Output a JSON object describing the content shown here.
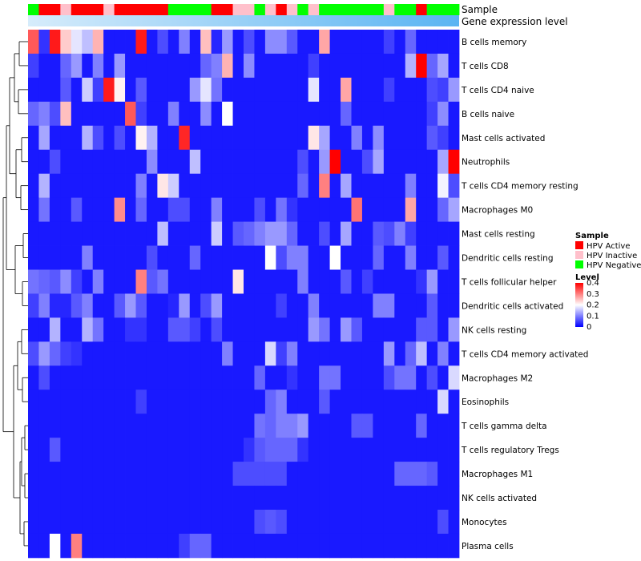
{
  "chart_data": {
    "type": "heatmap",
    "annotations": [
      {
        "label": "Sample"
      },
      {
        "label": "Gene expression level"
      }
    ],
    "sample_groups": [
      "HPV Negative",
      "HPV Active",
      "HPV Active",
      "HPV Inactive",
      "HPV Active",
      "HPV Active",
      "HPV Active",
      "HPV Inactive",
      "HPV Active",
      "HPV Active",
      "HPV Active",
      "HPV Active",
      "HPV Active",
      "HPV Negative",
      "HPV Negative",
      "HPV Negative",
      "HPV Negative",
      "HPV Active",
      "HPV Active",
      "HPV Inactive",
      "HPV Inactive",
      "HPV Negative",
      "HPV Inactive",
      "HPV Active",
      "HPV Inactive",
      "HPV Negative",
      "HPV Inactive",
      "HPV Negative",
      "HPV Negative",
      "HPV Negative",
      "HPV Negative",
      "HPV Negative",
      "HPV Negative",
      "HPV Inactive",
      "HPV Negative",
      "HPV Negative",
      "HPV Active",
      "HPV Negative",
      "HPV Negative",
      "HPV Negative"
    ],
    "rows": [
      "B cells memory",
      "T cells CD8",
      "T cells CD4 naive",
      "B cells naive",
      "Mast cells activated",
      "Neutrophils",
      "T cells CD4 memory resting",
      "Macrophages M0",
      "Mast cells resting",
      "Dendritic cells resting",
      "T cells follicular helper",
      "Dendritic cells activated",
      "NK cells resting",
      "T cells CD4 memory activated",
      "Macrophages M2",
      "Eosinophils",
      "T cells gamma delta",
      "T cells regulatory  Tregs",
      "Macrophages M1",
      "NK cells activated",
      "Monocytes",
      "Plasma cells"
    ],
    "values": [
      [
        0.33,
        0.04,
        0.38,
        0.24,
        0.18,
        0.15,
        0.26,
        0.02,
        0.02,
        0.02,
        0.38,
        0.02,
        0.06,
        0.02,
        0.1,
        0.02,
        0.25,
        0.03,
        0.12,
        0.02,
        0.06,
        0.02,
        0.11,
        0.11,
        0.07,
        0.02,
        0.02,
        0.27,
        0.02,
        0.02,
        0.02,
        0.02,
        0.02,
        0.05,
        0.02,
        0.08,
        0.02,
        0.02,
        0.02,
        0.02
      ],
      [
        0.05,
        0.02,
        0.02,
        0.08,
        0.12,
        0.02,
        0.1,
        0.02,
        0.12,
        0.02,
        0.02,
        0.02,
        0.02,
        0.02,
        0.02,
        0.02,
        0.08,
        0.1,
        0.26,
        0.02,
        0.11,
        0.02,
        0.02,
        0.02,
        0.02,
        0.02,
        0.05,
        0.02,
        0.02,
        0.02,
        0.02,
        0.02,
        0.02,
        0.02,
        0.02,
        0.14,
        0.4,
        0.08,
        0.13,
        0.02
      ],
      [
        0.02,
        0.02,
        0.02,
        0.07,
        0.02,
        0.16,
        0.05,
        0.38,
        0.21,
        0.02,
        0.07,
        0.02,
        0.02,
        0.02,
        0.02,
        0.12,
        0.18,
        0.09,
        0.02,
        0.02,
        0.02,
        0.02,
        0.02,
        0.02,
        0.02,
        0.02,
        0.18,
        0.02,
        0.02,
        0.27,
        0.02,
        0.02,
        0.02,
        0.05,
        0.02,
        0.02,
        0.02,
        0.06,
        0.05,
        0.12
      ],
      [
        0.08,
        0.1,
        0.06,
        0.25,
        0.02,
        0.02,
        0.02,
        0.02,
        0.02,
        0.33,
        0.05,
        0.02,
        0.02,
        0.1,
        0.02,
        0.02,
        0.11,
        0.02,
        0.2,
        0.02,
        0.02,
        0.02,
        0.02,
        0.02,
        0.02,
        0.02,
        0.02,
        0.02,
        0.02,
        0.08,
        0.02,
        0.02,
        0.02,
        0.02,
        0.02,
        0.02,
        0.02,
        0.05,
        0.11,
        0.02
      ],
      [
        0.02,
        0.13,
        0.02,
        0.02,
        0.02,
        0.14,
        0.06,
        0.02,
        0.06,
        0.02,
        0.21,
        0.14,
        0.02,
        0.02,
        0.37,
        0.02,
        0.02,
        0.02,
        0.02,
        0.02,
        0.02,
        0.02,
        0.02,
        0.02,
        0.02,
        0.02,
        0.22,
        0.13,
        0.02,
        0.02,
        0.1,
        0.02,
        0.11,
        0.02,
        0.02,
        0.02,
        0.02,
        0.07,
        0.05,
        0.02
      ],
      [
        0.02,
        0.02,
        0.06,
        0.02,
        0.02,
        0.02,
        0.02,
        0.02,
        0.02,
        0.02,
        0.02,
        0.11,
        0.02,
        0.02,
        0.02,
        0.15,
        0.02,
        0.02,
        0.02,
        0.02,
        0.02,
        0.02,
        0.02,
        0.02,
        0.02,
        0.06,
        0.02,
        0.12,
        0.4,
        0.02,
        0.02,
        0.06,
        0.13,
        0.02,
        0.02,
        0.02,
        0.02,
        0.02,
        0.13,
        0.4
      ],
      [
        0.02,
        0.14,
        0.02,
        0.02,
        0.02,
        0.02,
        0.02,
        0.02,
        0.02,
        0.02,
        0.1,
        0.02,
        0.22,
        0.16,
        0.02,
        0.02,
        0.02,
        0.02,
        0.02,
        0.02,
        0.02,
        0.02,
        0.02,
        0.02,
        0.02,
        0.08,
        0.02,
        0.3,
        0.02,
        0.13,
        0.02,
        0.02,
        0.02,
        0.02,
        0.02,
        0.1,
        0.02,
        0.02,
        0.19,
        0.06
      ],
      [
        0.02,
        0.09,
        0.02,
        0.02,
        0.07,
        0.02,
        0.02,
        0.02,
        0.29,
        0.02,
        0.08,
        0.02,
        0.02,
        0.06,
        0.06,
        0.02,
        0.02,
        0.1,
        0.02,
        0.02,
        0.02,
        0.06,
        0.02,
        0.09,
        0.04,
        0.02,
        0.02,
        0.02,
        0.02,
        0.02,
        0.31,
        0.02,
        0.02,
        0.02,
        0.02,
        0.27,
        0.02,
        0.02,
        0.08,
        0.13
      ],
      [
        0.02,
        0.02,
        0.02,
        0.02,
        0.02,
        0.02,
        0.02,
        0.02,
        0.02,
        0.02,
        0.02,
        0.02,
        0.15,
        0.02,
        0.02,
        0.02,
        0.02,
        0.16,
        0.02,
        0.07,
        0.08,
        0.1,
        0.12,
        0.12,
        0.08,
        0.02,
        0.02,
        0.06,
        0.02,
        0.13,
        0.02,
        0.02,
        0.07,
        0.06,
        0.1,
        0.05,
        0.02,
        0.02,
        0.02,
        0.02
      ],
      [
        0.02,
        0.02,
        0.02,
        0.02,
        0.02,
        0.1,
        0.02,
        0.02,
        0.02,
        0.02,
        0.02,
        0.06,
        0.02,
        0.02,
        0.02,
        0.08,
        0.02,
        0.02,
        0.02,
        0.02,
        0.02,
        0.02,
        0.2,
        0.06,
        0.1,
        0.1,
        0.02,
        0.02,
        0.2,
        0.02,
        0.02,
        0.02,
        0.08,
        0.02,
        0.02,
        0.1,
        0.02,
        0.02,
        0.07,
        0.02
      ],
      [
        0.09,
        0.08,
        0.07,
        0.11,
        0.05,
        0.02,
        0.1,
        0.02,
        0.02,
        0.02,
        0.3,
        0.07,
        0.09,
        0.02,
        0.02,
        0.02,
        0.02,
        0.02,
        0.02,
        0.22,
        0.02,
        0.02,
        0.02,
        0.02,
        0.02,
        0.1,
        0.02,
        0.02,
        0.02,
        0.07,
        0.02,
        0.05,
        0.02,
        0.02,
        0.02,
        0.02,
        0.04,
        0.12,
        0.02,
        0.02
      ],
      [
        0.05,
        0.1,
        0.03,
        0.03,
        0.07,
        0.1,
        0.02,
        0.02,
        0.07,
        0.12,
        0.07,
        0.02,
        0.02,
        0.03,
        0.12,
        0.02,
        0.06,
        0.12,
        0.02,
        0.02,
        0.02,
        0.02,
        0.02,
        0.05,
        0.02,
        0.02,
        0.1,
        0.02,
        0.02,
        0.02,
        0.02,
        0.02,
        0.1,
        0.1,
        0.02,
        0.02,
        0.02,
        0.07,
        0.02,
        0.02
      ],
      [
        0.02,
        0.02,
        0.14,
        0.02,
        0.02,
        0.14,
        0.09,
        0.02,
        0.02,
        0.04,
        0.04,
        0.02,
        0.02,
        0.07,
        0.07,
        0.05,
        0.02,
        0.06,
        0.02,
        0.02,
        0.02,
        0.02,
        0.02,
        0.02,
        0.02,
        0.02,
        0.12,
        0.09,
        0.02,
        0.12,
        0.07,
        0.02,
        0.02,
        0.02,
        0.02,
        0.02,
        0.07,
        0.07,
        0.02,
        0.12
      ],
      [
        0.06,
        0.12,
        0.08,
        0.05,
        0.04,
        0.02,
        0.02,
        0.02,
        0.02,
        0.02,
        0.02,
        0.02,
        0.02,
        0.02,
        0.02,
        0.02,
        0.02,
        0.02,
        0.1,
        0.02,
        0.02,
        0.02,
        0.17,
        0.05,
        0.1,
        0.02,
        0.02,
        0.02,
        0.02,
        0.02,
        0.02,
        0.02,
        0.02,
        0.12,
        0.02,
        0.08,
        0.15,
        0.02,
        0.1,
        0.02
      ],
      [
        0.02,
        0.06,
        0.02,
        0.02,
        0.02,
        0.02,
        0.02,
        0.02,
        0.02,
        0.02,
        0.02,
        0.02,
        0.02,
        0.02,
        0.02,
        0.02,
        0.02,
        0.02,
        0.02,
        0.02,
        0.02,
        0.08,
        0.02,
        0.02,
        0.04,
        0.02,
        0.02,
        0.09,
        0.09,
        0.02,
        0.02,
        0.02,
        0.02,
        0.06,
        0.09,
        0.09,
        0.02,
        0.06,
        0.02,
        0.17
      ],
      [
        0.02,
        0.02,
        0.02,
        0.02,
        0.02,
        0.02,
        0.02,
        0.02,
        0.02,
        0.02,
        0.05,
        0.02,
        0.02,
        0.02,
        0.02,
        0.02,
        0.02,
        0.02,
        0.02,
        0.02,
        0.02,
        0.02,
        0.08,
        0.1,
        0.02,
        0.02,
        0.02,
        0.07,
        0.02,
        0.02,
        0.02,
        0.02,
        0.02,
        0.02,
        0.02,
        0.02,
        0.02,
        0.02,
        0.17,
        0.02
      ],
      [
        0.02,
        0.02,
        0.02,
        0.02,
        0.02,
        0.02,
        0.02,
        0.02,
        0.02,
        0.02,
        0.02,
        0.02,
        0.02,
        0.02,
        0.02,
        0.02,
        0.02,
        0.02,
        0.02,
        0.02,
        0.02,
        0.09,
        0.08,
        0.1,
        0.1,
        0.12,
        0.02,
        0.02,
        0.02,
        0.02,
        0.07,
        0.07,
        0.02,
        0.02,
        0.02,
        0.02,
        0.08,
        0.02,
        0.02,
        0.02
      ],
      [
        0.02,
        0.02,
        0.07,
        0.02,
        0.02,
        0.02,
        0.02,
        0.02,
        0.02,
        0.02,
        0.02,
        0.02,
        0.02,
        0.02,
        0.02,
        0.02,
        0.02,
        0.02,
        0.02,
        0.02,
        0.04,
        0.07,
        0.08,
        0.08,
        0.08,
        0.04,
        0.02,
        0.02,
        0.02,
        0.02,
        0.02,
        0.02,
        0.02,
        0.02,
        0.02,
        0.02,
        0.02,
        0.02,
        0.02,
        0.02
      ],
      [
        0.02,
        0.02,
        0.02,
        0.02,
        0.02,
        0.02,
        0.02,
        0.02,
        0.02,
        0.02,
        0.02,
        0.02,
        0.02,
        0.02,
        0.02,
        0.02,
        0.02,
        0.02,
        0.02,
        0.06,
        0.06,
        0.06,
        0.06,
        0.06,
        0.02,
        0.02,
        0.02,
        0.02,
        0.02,
        0.02,
        0.02,
        0.02,
        0.02,
        0.02,
        0.08,
        0.08,
        0.08,
        0.07,
        0.02,
        0.02
      ],
      [
        0.02,
        0.02,
        0.02,
        0.02,
        0.02,
        0.02,
        0.02,
        0.02,
        0.02,
        0.02,
        0.02,
        0.02,
        0.02,
        0.02,
        0.02,
        0.02,
        0.02,
        0.02,
        0.02,
        0.02,
        0.02,
        0.02,
        0.02,
        0.02,
        0.02,
        0.02,
        0.02,
        0.02,
        0.02,
        0.02,
        0.02,
        0.02,
        0.02,
        0.02,
        0.02,
        0.02,
        0.02,
        0.02,
        0.02,
        0.02
      ],
      [
        0.02,
        0.02,
        0.02,
        0.02,
        0.02,
        0.02,
        0.02,
        0.02,
        0.02,
        0.02,
        0.02,
        0.02,
        0.02,
        0.02,
        0.02,
        0.02,
        0.02,
        0.02,
        0.02,
        0.02,
        0.02,
        0.06,
        0.07,
        0.06,
        0.02,
        0.02,
        0.02,
        0.02,
        0.02,
        0.02,
        0.02,
        0.02,
        0.02,
        0.02,
        0.02,
        0.02,
        0.02,
        0.02,
        0.06,
        0.02
      ],
      [
        0.02,
        0.02,
        0.2,
        0.02,
        0.3,
        0.02,
        0.02,
        0.02,
        0.02,
        0.02,
        0.02,
        0.02,
        0.02,
        0.02,
        0.05,
        0.08,
        0.08,
        0.02,
        0.02,
        0.02,
        0.02,
        0.02,
        0.02,
        0.02,
        0.02,
        0.02,
        0.02,
        0.02,
        0.02,
        0.02,
        0.02,
        0.02,
        0.02,
        0.02,
        0.02,
        0.02,
        0.02,
        0.02,
        0.02,
        0.02
      ]
    ],
    "legend": {
      "sample_title": "Sample",
      "sample_levels": [
        "HPV Active",
        "HPV Inactive",
        "HPV Negative"
      ],
      "sample_colors": [
        "#ff0000",
        "#ffc0cb",
        "#00ff00"
      ],
      "level_title": "Level",
      "level_ticks": [
        "0.4",
        "0.3",
        "0.2",
        "0.1",
        "0"
      ],
      "level_range": [
        0,
        0.4
      ],
      "level_colors": [
        "#0000ff",
        "#ffffff",
        "#ff0000"
      ]
    },
    "dendrogram": "row"
  }
}
